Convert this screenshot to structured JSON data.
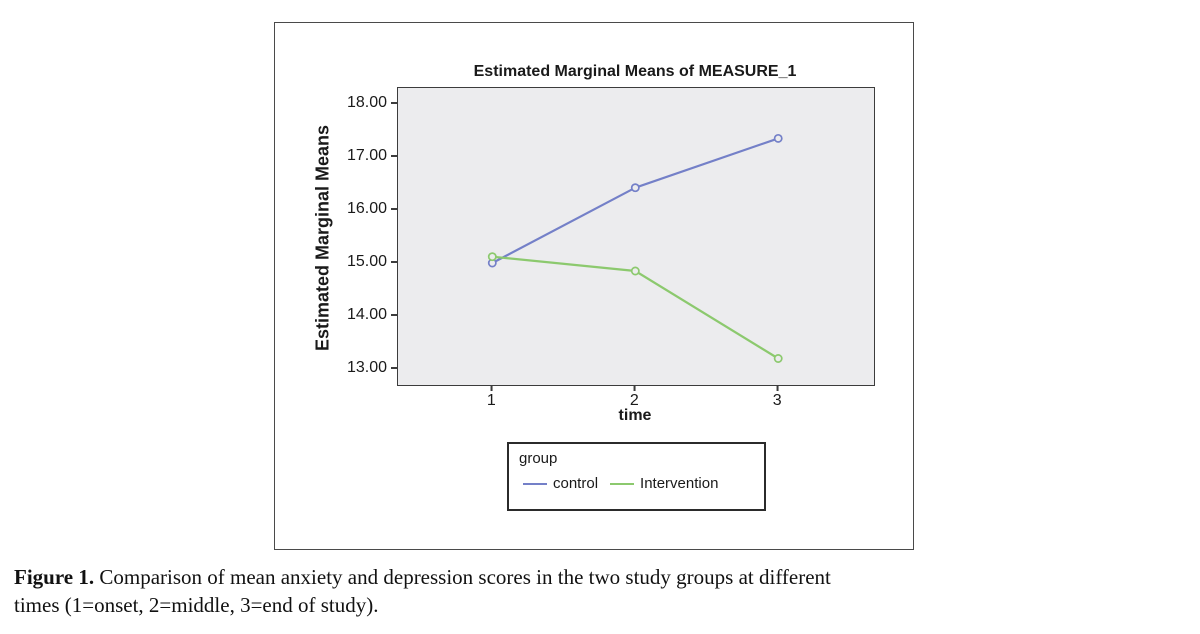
{
  "chart_data": {
    "type": "line",
    "title": "Estimated Marginal Means of MEASURE_1",
    "xlabel": "time",
    "ylabel": "Estimated Marginal Means",
    "x": [
      1,
      2,
      3
    ],
    "series": [
      {
        "name": "control",
        "color": "#7480c8",
        "values": [
          15.0,
          16.42,
          17.35
        ]
      },
      {
        "name": "Intervention",
        "color": "#8cc96e",
        "values": [
          15.12,
          14.85,
          13.2
        ]
      }
    ],
    "legend": {
      "title": "group",
      "position": "below"
    },
    "xlim": [
      0.34,
      3.67
    ],
    "ylim": [
      12.7,
      18.3
    ],
    "xticks": [
      {
        "value": 1,
        "label": "1"
      },
      {
        "value": 2,
        "label": "2"
      },
      {
        "value": 3,
        "label": "3"
      }
    ],
    "yticks": [
      {
        "value": 18,
        "label": "18.00"
      },
      {
        "value": 17,
        "label": "17.00"
      },
      {
        "value": 16,
        "label": "16.00"
      },
      {
        "value": 15,
        "label": "15.00"
      },
      {
        "value": 14,
        "label": "14.00"
      },
      {
        "value": 13,
        "label": "13.00"
      }
    ],
    "grid": false,
    "panel_bg": "#ececee",
    "marker": "open-circle"
  },
  "caption": {
    "label": "Figure 1.",
    "line1": "Comparison of mean anxiety and depression scores in the two study groups at different",
    "line2": "times (1=onset, 2=middle, 3=end of study)."
  }
}
